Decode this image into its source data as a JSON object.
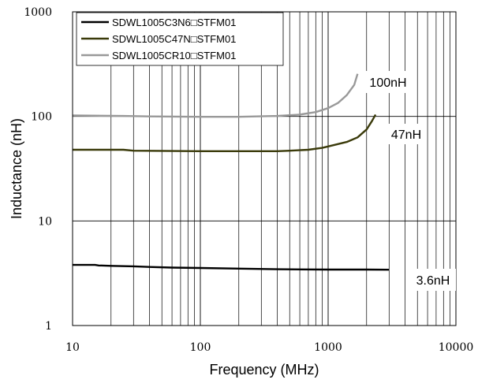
{
  "chart_data": {
    "type": "line",
    "xlabel": "Frequency (MHz)",
    "ylabel": "Inductance (nH)",
    "xscale": "log",
    "yscale": "log",
    "xlim": [
      10,
      10000
    ],
    "ylim": [
      1,
      1000
    ],
    "x_ticks": [
      "10",
      "100",
      "1000",
      "10000"
    ],
    "y_ticks": [
      "1",
      "10",
      "100",
      "1000"
    ],
    "grid": "vertical minor and major gridlines; horizontal gridlines at decades",
    "legend_position": "top-left",
    "series": [
      {
        "name": "SDWL1005C3N6□STFM01",
        "color": "#000000",
        "points": [
          [
            10,
            3.8
          ],
          [
            15,
            3.8
          ],
          [
            16,
            3.75
          ],
          [
            20,
            3.72
          ],
          [
            30,
            3.68
          ],
          [
            40,
            3.63
          ],
          [
            60,
            3.58
          ],
          [
            100,
            3.55
          ],
          [
            200,
            3.5
          ],
          [
            400,
            3.45
          ],
          [
            1000,
            3.43
          ],
          [
            2000,
            3.43
          ],
          [
            3000,
            3.42
          ]
        ]
      },
      {
        "name": "SDWL1005C47N□STFM01",
        "color": "#3a3a0a",
        "points": [
          [
            10,
            48
          ],
          [
            25,
            48
          ],
          [
            30,
            47
          ],
          [
            100,
            46.5
          ],
          [
            200,
            46.5
          ],
          [
            400,
            46.5
          ],
          [
            500,
            47
          ],
          [
            700,
            48
          ],
          [
            900,
            50
          ],
          [
            1100,
            53
          ],
          [
            1400,
            57
          ],
          [
            1700,
            63
          ],
          [
            2000,
            75
          ],
          [
            2200,
            90
          ],
          [
            2350,
            104
          ]
        ]
      },
      {
        "name": "SDWL1005CR10□STFM01",
        "color": "#999999",
        "points": [
          [
            10,
            102
          ],
          [
            25,
            101
          ],
          [
            40,
            100
          ],
          [
            100,
            99
          ],
          [
            200,
            99
          ],
          [
            400,
            101
          ],
          [
            600,
            104
          ],
          [
            800,
            110
          ],
          [
            1000,
            120
          ],
          [
            1200,
            135
          ],
          [
            1400,
            160
          ],
          [
            1600,
            200
          ],
          [
            1700,
            255
          ]
        ]
      }
    ],
    "annotations": [
      "100nH",
      "47nH",
      "3.6nH"
    ]
  }
}
